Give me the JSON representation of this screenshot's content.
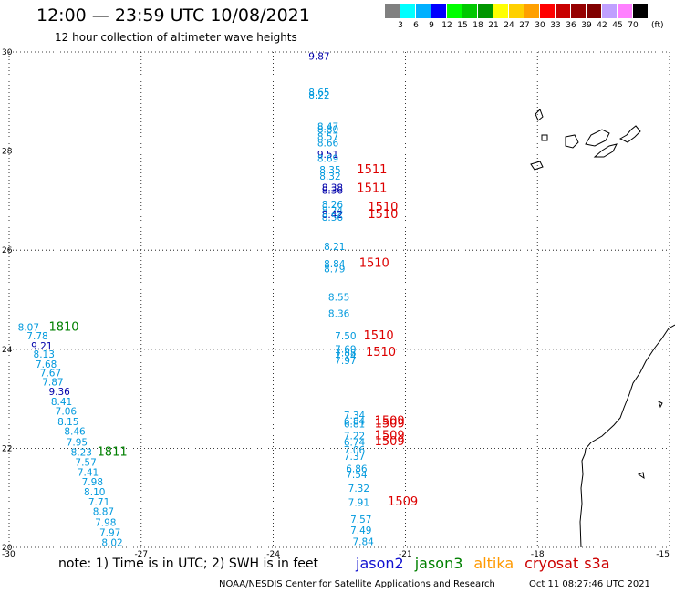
{
  "header": {
    "title": "12:00 — 23:59 UTC 10/08/2021",
    "subtitle": "12 hour collection of altimeter wave heights"
  },
  "colorbar": {
    "colors": [
      "#808080",
      "#00ffff",
      "#00b0ff",
      "#0000ff",
      "#00ff00",
      "#00c800",
      "#009600",
      "#ffff00",
      "#ffd000",
      "#ffa000",
      "#ff0000",
      "#c80000",
      "#960000",
      "#800000",
      "#c0a0ff",
      "#ff80ff",
      "#000000"
    ],
    "labels": [
      "3",
      "6",
      "9",
      "12",
      "15",
      "18",
      "21",
      "24",
      "27",
      "30",
      "33",
      "36",
      "39",
      "42",
      "45",
      "70"
    ],
    "unit": "(ft)"
  },
  "note": {
    "text": "note:  1) Time is in UTC;  2) SWH is in feet"
  },
  "legend": {
    "items": [
      {
        "label": "jason2",
        "color": "#1010d0"
      },
      {
        "label": "jason3",
        "color": "#008000"
      },
      {
        "label": "altika",
        "color": "#ff9900"
      },
      {
        "label": "cryosat",
        "color": "#cc0000"
      },
      {
        "label": "s3a",
        "color": "#cc0000"
      }
    ]
  },
  "footer": {
    "credit": "NOAA/NESDIS Center for Satellite Applications and Research",
    "timestamp": "Oct 11 08:27:46 UTC 2021"
  },
  "chart_data": {
    "type": "scatter",
    "title": "12:00 — 23:59 UTC 10/08/2021",
    "subtitle": "12 hour collection of altimeter wave heights",
    "xlim": [
      -30,
      -15
    ],
    "ylim": [
      20,
      30
    ],
    "x_ticks": [
      "-30",
      "-27",
      "-24",
      "-21",
      "-18",
      "-15"
    ],
    "y_ticks": [
      "20",
      "22",
      "24",
      "26",
      "28",
      "30"
    ],
    "grid": true,
    "colors": {
      "light": "#0099dd",
      "dark": "#0000aa",
      "green": "#008000",
      "red": "#dd0000"
    },
    "values": [
      {
        "lon": -23.2,
        "lat": 29.84,
        "v": "9.87",
        "c": "dark"
      },
      {
        "lon": -23.2,
        "lat": 29.12,
        "v": "8.65",
        "c": "light"
      },
      {
        "lon": -23.2,
        "lat": 29.06,
        "v": "8.22",
        "c": "light"
      },
      {
        "lon": -23.0,
        "lat": 28.43,
        "v": "8.47",
        "c": "light"
      },
      {
        "lon": -23.0,
        "lat": 28.37,
        "v": "8.80",
        "c": "light"
      },
      {
        "lon": -23.0,
        "lat": 28.22,
        "v": "8.57",
        "c": "light"
      },
      {
        "lon": -23.0,
        "lat": 28.09,
        "v": "8.66",
        "c": "light"
      },
      {
        "lon": -23.0,
        "lat": 27.86,
        "v": "9.51",
        "c": "dark"
      },
      {
        "lon": -23.0,
        "lat": 27.78,
        "v": "8.69",
        "c": "light"
      },
      {
        "lon": -22.95,
        "lat": 27.55,
        "v": "8.35",
        "c": "light"
      },
      {
        "lon": -22.95,
        "lat": 27.42,
        "v": "8.32",
        "c": "light"
      },
      {
        "lon": -22.9,
        "lat": 27.19,
        "v": "8.38",
        "c": "dark"
      },
      {
        "lon": -22.9,
        "lat": 27.14,
        "v": "8.36",
        "c": "dark"
      },
      {
        "lon": -22.9,
        "lat": 26.85,
        "v": "8.26",
        "c": "light"
      },
      {
        "lon": -22.9,
        "lat": 26.73,
        "v": "8.24",
        "c": "light"
      },
      {
        "lon": -22.9,
        "lat": 26.65,
        "v": "8.42",
        "c": "dark"
      },
      {
        "lon": -22.9,
        "lat": 26.59,
        "v": "8.56",
        "c": "light"
      },
      {
        "lon": -22.85,
        "lat": 26.0,
        "v": "8.21",
        "c": "light"
      },
      {
        "lon": -22.85,
        "lat": 25.65,
        "v": "8.84",
        "c": "light"
      },
      {
        "lon": -22.85,
        "lat": 25.55,
        "v": "8.79",
        "c": "light"
      },
      {
        "lon": -22.75,
        "lat": 24.98,
        "v": "8.55",
        "c": "light"
      },
      {
        "lon": -22.75,
        "lat": 24.65,
        "v": "8.36",
        "c": "light"
      },
      {
        "lon": -22.6,
        "lat": 24.2,
        "v": "7.50",
        "c": "light"
      },
      {
        "lon": -22.6,
        "lat": 23.93,
        "v": "7.69",
        "c": "light"
      },
      {
        "lon": -22.6,
        "lat": 23.86,
        "v": "7.88",
        "c": "light"
      },
      {
        "lon": -22.6,
        "lat": 23.79,
        "v": "7.74",
        "c": "light"
      },
      {
        "lon": -22.6,
        "lat": 23.7,
        "v": "7.97",
        "c": "light"
      },
      {
        "lon": -22.4,
        "lat": 22.6,
        "v": "7.34",
        "c": "light"
      },
      {
        "lon": -22.4,
        "lat": 22.48,
        "v": "6.84",
        "c": "light"
      },
      {
        "lon": -22.4,
        "lat": 22.42,
        "v": "6.81",
        "c": "light"
      },
      {
        "lon": -22.4,
        "lat": 22.18,
        "v": "7.22",
        "c": "light"
      },
      {
        "lon": -22.4,
        "lat": 22.05,
        "v": "6.74",
        "c": "light"
      },
      {
        "lon": -22.4,
        "lat": 21.9,
        "v": "7.06",
        "c": "light"
      },
      {
        "lon": -22.4,
        "lat": 21.77,
        "v": "7.37",
        "c": "light"
      },
      {
        "lon": -22.35,
        "lat": 21.52,
        "v": "6.86",
        "c": "light"
      },
      {
        "lon": -22.35,
        "lat": 21.4,
        "v": "7.54",
        "c": "light"
      },
      {
        "lon": -22.3,
        "lat": 21.12,
        "v": "7.32",
        "c": "light"
      },
      {
        "lon": -22.3,
        "lat": 20.84,
        "v": "7.91",
        "c": "light"
      },
      {
        "lon": -22.25,
        "lat": 20.5,
        "v": "7.57",
        "c": "light"
      },
      {
        "lon": -22.25,
        "lat": 20.28,
        "v": "7.49",
        "c": "light"
      },
      {
        "lon": -22.2,
        "lat": 20.05,
        "v": "7.84",
        "c": "light"
      },
      {
        "lon": -29.8,
        "lat": 24.37,
        "v": "8.07",
        "c": "light"
      },
      {
        "lon": -29.6,
        "lat": 24.2,
        "v": "7.78",
        "c": "light"
      },
      {
        "lon": -29.5,
        "lat": 24.0,
        "v": "9.21",
        "c": "dark"
      },
      {
        "lon": -29.45,
        "lat": 23.83,
        "v": "8.13",
        "c": "light"
      },
      {
        "lon": -29.4,
        "lat": 23.63,
        "v": "7.68",
        "c": "light"
      },
      {
        "lon": -29.3,
        "lat": 23.45,
        "v": "7.67",
        "c": "light"
      },
      {
        "lon": -29.25,
        "lat": 23.27,
        "v": "7.87",
        "c": "light"
      },
      {
        "lon": -29.1,
        "lat": 23.08,
        "v": "9.36",
        "c": "dark"
      },
      {
        "lon": -29.05,
        "lat": 22.87,
        "v": "8.41",
        "c": "light"
      },
      {
        "lon": -28.95,
        "lat": 22.68,
        "v": "7.06",
        "c": "light"
      },
      {
        "lon": -28.9,
        "lat": 22.47,
        "v": "8.15",
        "c": "light"
      },
      {
        "lon": -28.75,
        "lat": 22.27,
        "v": "8.46",
        "c": "light"
      },
      {
        "lon": -28.7,
        "lat": 22.05,
        "v": "7.95",
        "c": "light"
      },
      {
        "lon": -28.6,
        "lat": 21.85,
        "v": "8.23",
        "c": "light"
      },
      {
        "lon": -28.5,
        "lat": 21.65,
        "v": "7.57",
        "c": "light"
      },
      {
        "lon": -28.45,
        "lat": 21.45,
        "v": "7.41",
        "c": "light"
      },
      {
        "lon": -28.35,
        "lat": 21.25,
        "v": "7.98",
        "c": "light"
      },
      {
        "lon": -28.3,
        "lat": 21.05,
        "v": "8.10",
        "c": "light"
      },
      {
        "lon": -28.2,
        "lat": 20.85,
        "v": "7.71",
        "c": "light"
      },
      {
        "lon": -28.1,
        "lat": 20.65,
        "v": "8.87",
        "c": "light"
      },
      {
        "lon": -28.05,
        "lat": 20.43,
        "v": "7.98",
        "c": "light"
      },
      {
        "lon": -27.95,
        "lat": 20.23,
        "v": "7.97",
        "c": "light"
      },
      {
        "lon": -27.9,
        "lat": 20.03,
        "v": "8.02",
        "c": "light"
      }
    ],
    "pass_labels": [
      {
        "lon": -22.1,
        "lat": 27.55,
        "v": "1511",
        "c": "red"
      },
      {
        "lon": -22.1,
        "lat": 27.17,
        "v": "1511",
        "c": "red"
      },
      {
        "lon": -21.85,
        "lat": 26.8,
        "v": "1510",
        "c": "red"
      },
      {
        "lon": -21.85,
        "lat": 26.65,
        "v": "1510",
        "c": "red"
      },
      {
        "lon": -22.05,
        "lat": 25.66,
        "v": "1510",
        "c": "red"
      },
      {
        "lon": -21.95,
        "lat": 24.2,
        "v": "1510",
        "c": "red"
      },
      {
        "lon": -21.9,
        "lat": 23.87,
        "v": "1510",
        "c": "red"
      },
      {
        "lon": -21.7,
        "lat": 22.48,
        "v": "1509",
        "c": "red"
      },
      {
        "lon": -21.7,
        "lat": 22.42,
        "v": "1509",
        "c": "red"
      },
      {
        "lon": -21.7,
        "lat": 22.18,
        "v": "1509",
        "c": "red"
      },
      {
        "lon": -21.7,
        "lat": 22.06,
        "v": "1509",
        "c": "red"
      },
      {
        "lon": -21.4,
        "lat": 20.85,
        "v": "1509",
        "c": "red"
      },
      {
        "lon": -29.1,
        "lat": 24.37,
        "v": "1810",
        "c": "green"
      },
      {
        "lon": -28.0,
        "lat": 21.85,
        "v": "1811",
        "c": "green"
      }
    ]
  }
}
